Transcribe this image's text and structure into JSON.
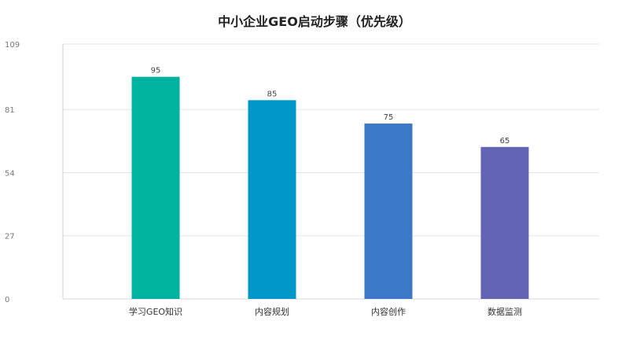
{
  "chart_data": {
    "type": "bar",
    "title": "中小企业GEO启动步骤（优先级）",
    "categories": [
      "学习GEO知识",
      "内容规划",
      "内容创作",
      "数据监测"
    ],
    "values": [
      95,
      85,
      75,
      65
    ],
    "colors": [
      "#00b39e",
      "#0096c8",
      "#3b78c8",
      "#6464b4"
    ],
    "yticks": [
      0,
      27,
      54,
      81,
      109
    ],
    "ylim": [
      0,
      109
    ],
    "xlabel": "",
    "ylabel": "",
    "grid": true,
    "legend": "none"
  }
}
